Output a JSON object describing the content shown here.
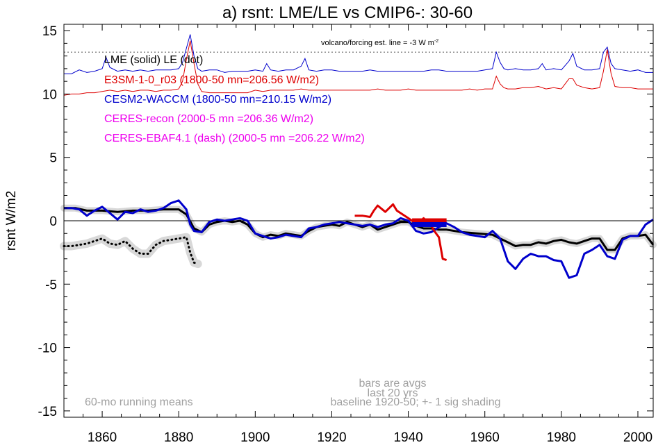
{
  "chart_data": {
    "type": "line",
    "title": "a) rsnt: LME/LE vs CMIP6-: 30-60",
    "ylabel": "rsnt W/m2",
    "xlabel": "",
    "xlim": [
      1850,
      2004
    ],
    "ylim": [
      -15.5,
      15.5
    ],
    "xticks": [
      1860,
      1880,
      1900,
      1920,
      1940,
      1960,
      1980,
      2000
    ],
    "yticks": [
      15,
      10,
      5,
      0,
      -5,
      -10,
      -15
    ],
    "zero_line": 0,
    "colors": {
      "lme": "#000000",
      "e3sm": "#dd0000",
      "cesm2": "#0000cc",
      "ceres": "#ee00ee",
      "annot": "#a0a0a0",
      "shade": "#d8d8d8"
    },
    "legend": [
      {
        "text": "LME (solid)   LE (dot)",
        "color": "#000000"
      },
      {
        "text": "E3SM-1-0_r03 (1800-50 mn=206.56 W/m2)",
        "color": "#dd0000"
      },
      {
        "text": "CESM2-WACCM (1800-50 mn=210.15 W/m2)",
        "color": "#0000cc"
      },
      {
        "text": "CERES-recon (2000-5 mn =206.36 W/m2)",
        "color": "#ee00ee"
      },
      {
        "text": "CERES-EBAF4.1 (dash) (2000-5 mn =206.22 W/m2)",
        "color": "#ee00ee"
      }
    ],
    "annotations": {
      "volcano": "volcano/forcing est.      line = -3 W m",
      "volcano_sup": "-2",
      "bars_line1": "bars are avgs",
      "bars_line2": "last 20 yrs",
      "baseline": "baseline 1920-50; +- 1 sig shading",
      "running": "60-mo running means"
    },
    "volcano_dotted_level": 13.3,
    "series": [
      {
        "name": "LME (solid)",
        "style": "solid",
        "color": "#000000",
        "x": [
          1850,
          1853,
          1856,
          1860,
          1864,
          1868,
          1872,
          1876,
          1880,
          1882,
          1884,
          1886,
          1888,
          1890,
          1892,
          1894,
          1896,
          1898,
          1900,
          1902,
          1904,
          1906,
          1908,
          1910,
          1912,
          1914,
          1916,
          1918,
          1920,
          1922,
          1924,
          1926,
          1928,
          1930,
          1932,
          1934,
          1936,
          1938,
          1940,
          1942,
          1944,
          1946,
          1948,
          1950,
          1954,
          1958,
          1962,
          1964,
          1966,
          1968,
          1970,
          1972,
          1974,
          1976,
          1978,
          1980,
          1982,
          1984,
          1986,
          1988,
          1990,
          1992,
          1994,
          1996,
          1998,
          2000,
          2002,
          2004
        ],
        "y": [
          1.0,
          1.0,
          0.8,
          0.8,
          0.7,
          0.8,
          0.8,
          0.9,
          0.9,
          0.5,
          -0.6,
          -0.9,
          -0.3,
          -0.1,
          0.0,
          -0.1,
          0.0,
          -0.3,
          -1.0,
          -1.3,
          -1.1,
          -1.2,
          -1.0,
          -1.1,
          -1.2,
          -0.8,
          -0.5,
          -0.4,
          -0.3,
          -0.4,
          -0.1,
          -0.3,
          -0.5,
          -0.3,
          -0.7,
          -0.5,
          -0.3,
          -0.1,
          -0.1,
          -0.4,
          -0.6,
          -0.6,
          -0.7,
          -0.7,
          -0.9,
          -1.0,
          -1.1,
          -1.4,
          -1.7,
          -2.0,
          -1.9,
          -1.9,
          -1.7,
          -1.8,
          -1.6,
          -1.5,
          -1.7,
          -1.8,
          -1.6,
          -1.4,
          -1.4,
          -2.3,
          -2.3,
          -1.4,
          -1.2,
          -1.2,
          -1.1,
          -1.9
        ]
      },
      {
        "name": "LE (dot)",
        "style": "dotted",
        "color": "#000000",
        "x": [
          1850,
          1852,
          1854,
          1856,
          1858,
          1860,
          1862,
          1864,
          1866,
          1868,
          1870,
          1872,
          1874,
          1876,
          1878,
          1880,
          1882,
          1883,
          1884,
          1885
        ],
        "y": [
          -2.0,
          -2.0,
          -1.9,
          -1.8,
          -1.6,
          -1.4,
          -1.8,
          -1.9,
          -1.6,
          -2.2,
          -2.6,
          -2.6,
          -1.9,
          -1.6,
          -1.5,
          -1.4,
          -1.3,
          -2.5,
          -3.3,
          -3.4
        ]
      },
      {
        "name": "CESM2-WACCM",
        "style": "solid",
        "color": "#0000cc",
        "x": [
          1850,
          1852,
          1854,
          1856,
          1858,
          1860,
          1862,
          1864,
          1866,
          1868,
          1870,
          1872,
          1874,
          1876,
          1878,
          1880,
          1882,
          1883,
          1884,
          1886,
          1888,
          1890,
          1892,
          1894,
          1896,
          1898,
          1900,
          1902,
          1904,
          1906,
          1908,
          1910,
          1912,
          1914,
          1916,
          1918,
          1920,
          1922,
          1924,
          1926,
          1928,
          1930,
          1932,
          1934,
          1936,
          1938,
          1940,
          1942,
          1944,
          1946,
          1948,
          1950,
          1952,
          1954,
          1956,
          1958,
          1960,
          1962,
          1964,
          1966,
          1968,
          1970,
          1972,
          1974,
          1976,
          1978,
          1980,
          1982,
          1984,
          1986,
          1988,
          1990,
          1992,
          1994,
          1996,
          1998,
          2000,
          2002,
          2004
        ],
        "y": [
          1.0,
          1.0,
          0.9,
          0.4,
          0.8,
          1.1,
          0.6,
          0.1,
          0.7,
          0.6,
          0.9,
          0.7,
          0.8,
          1.0,
          1.4,
          1.6,
          0.9,
          -0.3,
          -0.8,
          -0.9,
          -0.1,
          0.1,
          0.0,
          0.1,
          0.2,
          0.0,
          -1.0,
          -1.2,
          -1.4,
          -1.3,
          -1.1,
          -1.2,
          -1.3,
          -0.6,
          -0.5,
          -0.3,
          -0.2,
          -0.1,
          -0.2,
          -0.3,
          -0.4,
          -0.3,
          -0.5,
          -0.3,
          -0.2,
          0.2,
          0.0,
          -0.8,
          -1.0,
          -0.9,
          -0.5,
          -0.2,
          -0.5,
          -0.9,
          -1.1,
          -1.2,
          -1.3,
          -0.8,
          -1.4,
          -3.2,
          -3.8,
          -3.0,
          -2.6,
          -2.8,
          -2.8,
          -3.1,
          -3.2,
          -4.5,
          -4.3,
          -2.6,
          -2.3,
          -1.9,
          -2.8,
          -3.0,
          -1.5,
          -1.2,
          -1.2,
          -0.3,
          0.1
        ]
      },
      {
        "name": "E3SM-1-0_r03",
        "style": "solid",
        "color": "#dd0000",
        "x": [
          1926,
          1928,
          1930,
          1931,
          1932,
          1934,
          1936,
          1937,
          1938,
          1940,
          1942,
          1943,
          1944,
          1946,
          1947,
          1948,
          1949,
          1950
        ],
        "y": [
          0.4,
          0.4,
          0.3,
          0.8,
          1.2,
          0.7,
          1.3,
          0.8,
          0.6,
          0.2,
          -0.2,
          -0.1,
          0.2,
          -0.4,
          -0.9,
          -1.3,
          -3.0,
          -3.1
        ]
      }
    ],
    "volcano_traces": [
      {
        "name": "CESM2-WACCM forcing",
        "color": "#0000cc",
        "x": [
          1850,
          1852,
          1854,
          1856,
          1858,
          1860,
          1861,
          1862,
          1864,
          1866,
          1868,
          1870,
          1872,
          1874,
          1876,
          1878,
          1880,
          1881,
          1882,
          1883,
          1884,
          1885,
          1886,
          1888,
          1890,
          1892,
          1894,
          1896,
          1898,
          1900,
          1902,
          1903,
          1904,
          1906,
          1908,
          1910,
          1912,
          1913,
          1914,
          1916,
          1918,
          1920,
          1922,
          1924,
          1926,
          1928,
          1930,
          1932,
          1934,
          1936,
          1938,
          1940,
          1942,
          1944,
          1946,
          1948,
          1950,
          1952,
          1954,
          1956,
          1958,
          1960,
          1962,
          1963,
          1964,
          1965,
          1966,
          1968,
          1970,
          1972,
          1974,
          1975,
          1976,
          1978,
          1980,
          1982,
          1983,
          1984,
          1986,
          1988,
          1990,
          1991,
          1992,
          1993,
          1994,
          1996,
          1998,
          2000,
          2002,
          2004
        ],
        "y": [
          11.6,
          11.6,
          11.9,
          11.7,
          11.8,
          12.0,
          12.9,
          12.1,
          11.8,
          11.9,
          11.8,
          11.9,
          11.8,
          11.9,
          11.9,
          11.9,
          12.0,
          12.5,
          13.6,
          14.7,
          13.0,
          12.0,
          11.8,
          11.9,
          11.9,
          11.7,
          11.8,
          11.8,
          11.8,
          11.9,
          11.8,
          12.4,
          11.9,
          11.8,
          11.9,
          11.9,
          12.2,
          12.8,
          11.9,
          11.8,
          11.9,
          11.9,
          11.8,
          11.8,
          11.8,
          11.8,
          11.9,
          11.8,
          11.8,
          11.8,
          11.8,
          11.8,
          11.8,
          11.8,
          11.9,
          11.9,
          11.8,
          11.8,
          11.8,
          11.8,
          11.8,
          11.9,
          12.0,
          13.3,
          12.5,
          12.0,
          11.9,
          12.0,
          11.9,
          11.9,
          12.0,
          12.4,
          11.9,
          12.0,
          11.9,
          12.6,
          13.2,
          12.2,
          11.9,
          11.9,
          12.0,
          13.3,
          13.7,
          12.4,
          12.0,
          11.9,
          11.8,
          11.9,
          11.7,
          11.7
        ]
      },
      {
        "name": "E3SM forcing",
        "color": "#dd0000",
        "x": [
          1850,
          1852,
          1854,
          1856,
          1858,
          1860,
          1862,
          1864,
          1866,
          1868,
          1870,
          1872,
          1874,
          1876,
          1878,
          1880,
          1881,
          1882,
          1883,
          1884,
          1885,
          1886,
          1888,
          1890,
          1892,
          1894,
          1896,
          1898,
          1900,
          1902,
          1904,
          1906,
          1908,
          1910,
          1912,
          1914,
          1916,
          1918,
          1920,
          1922,
          1924,
          1926,
          1928,
          1930,
          1932,
          1934,
          1936,
          1938,
          1940,
          1942,
          1944,
          1946,
          1948,
          1950,
          1952,
          1954,
          1956,
          1958,
          1960,
          1962,
          1963,
          1964,
          1965,
          1966,
          1968,
          1970,
          1972,
          1974,
          1976,
          1978,
          1980,
          1982,
          1983,
          1984,
          1986,
          1988,
          1990,
          1991,
          1992,
          1993,
          1994,
          1996,
          1998,
          2000,
          2002,
          2004
        ],
        "y": [
          9.9,
          10.0,
          10.0,
          10.1,
          10.1,
          10.2,
          10.3,
          10.2,
          10.3,
          10.2,
          10.3,
          10.3,
          10.2,
          10.3,
          10.3,
          10.4,
          11.0,
          12.7,
          14.2,
          12.4,
          10.8,
          10.2,
          10.1,
          10.1,
          10.1,
          10.1,
          10.1,
          10.1,
          10.3,
          10.2,
          10.3,
          10.3,
          10.3,
          10.3,
          10.4,
          10.3,
          10.3,
          10.3,
          10.3,
          10.3,
          10.3,
          10.3,
          10.3,
          10.3,
          10.4,
          10.3,
          10.3,
          10.3,
          10.4,
          10.3,
          10.3,
          10.3,
          10.3,
          10.3,
          10.3,
          10.3,
          10.4,
          10.3,
          10.4,
          10.4,
          11.4,
          10.8,
          10.5,
          10.4,
          10.4,
          10.5,
          10.5,
          10.6,
          10.4,
          10.5,
          10.4,
          11.2,
          11.2,
          10.7,
          10.5,
          10.4,
          10.5,
          11.8,
          13.5,
          11.6,
          10.6,
          10.5,
          10.5,
          10.4,
          10.4,
          10.4
        ]
      }
    ],
    "bars": [
      {
        "series": "E3SM-1-0_r03",
        "color": "#dd0000",
        "x_start": 1941,
        "x_end": 1950,
        "y": 0.0
      },
      {
        "series": "CESM2-WACCM",
        "color": "#0000cc",
        "x_start": 1941,
        "x_end": 1950,
        "y": -0.3
      }
    ]
  }
}
